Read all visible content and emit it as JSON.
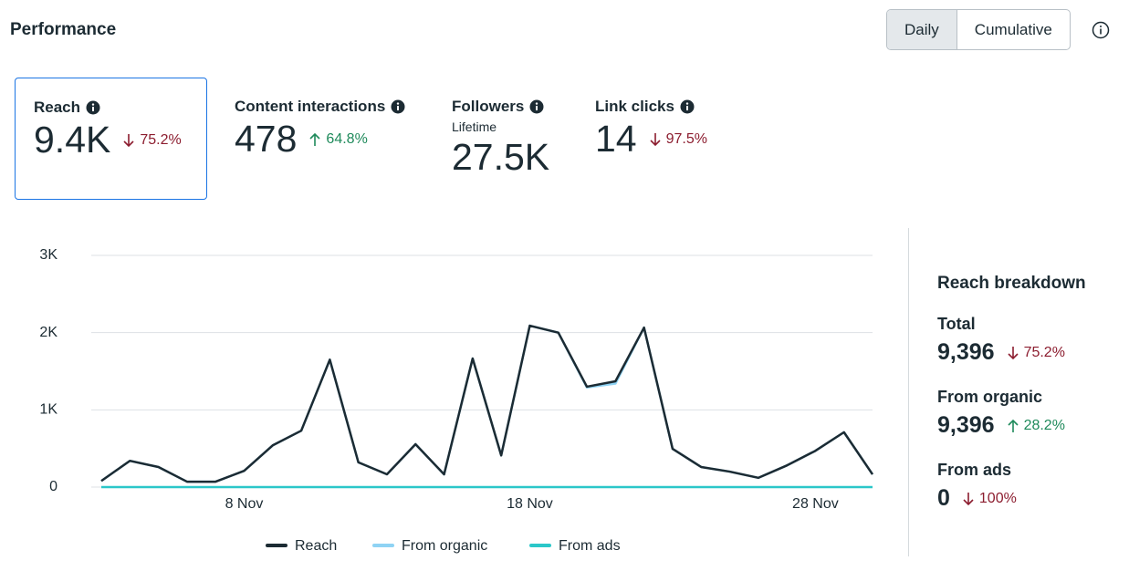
{
  "header": {
    "title": "Performance",
    "toggle": [
      "Daily",
      "Cumulative"
    ]
  },
  "metrics": [
    {
      "label": "Reach",
      "value": "9.4K",
      "change": "75.2%"
    },
    {
      "label": "Content interactions",
      "value": "478",
      "change": "64.8%"
    },
    {
      "label": "Followers",
      "sublabel": "Lifetime",
      "value": "27.5K"
    },
    {
      "label": "Link clicks",
      "value": "14",
      "change": "97.5%"
    }
  ],
  "chart_data": {
    "type": "line",
    "categories": [
      null,
      null,
      null,
      null,
      null,
      "8 Nov",
      null,
      null,
      null,
      null,
      null,
      null,
      null,
      null,
      null,
      "18 Nov",
      null,
      null,
      null,
      null,
      null,
      null,
      null,
      null,
      null,
      "28 Nov",
      null,
      null
    ],
    "series": [
      {
        "name": "Reach",
        "color": "#1c2b33",
        "values": [
          80,
          340,
          260,
          70,
          70,
          210,
          540,
          730,
          1650,
          320,
          165,
          555,
          165,
          1665,
          410,
          2090,
          2000,
          1300,
          1370,
          2065,
          495,
          260,
          200,
          120,
          280,
          470,
          710,
          165
        ]
      },
      {
        "name": "From organic",
        "color": "#8fd3f4",
        "values": [
          80,
          340,
          260,
          70,
          70,
          210,
          540,
          730,
          1650,
          320,
          165,
          555,
          165,
          1665,
          410,
          2090,
          2000,
          1290,
          1340,
          2065,
          495,
          260,
          200,
          120,
          280,
          470,
          710,
          165
        ]
      },
      {
        "name": "From ads",
        "color": "#2bc7c9",
        "values": [
          0,
          0,
          0,
          0,
          0,
          0,
          0,
          0,
          0,
          0,
          0,
          0,
          0,
          0,
          0,
          0,
          0,
          0,
          0,
          0,
          0,
          0,
          0,
          0,
          0,
          0,
          0,
          0
        ]
      }
    ],
    "ylim": [
      0,
      3000
    ],
    "yticks": [
      0,
      {
        "value": 1000,
        "label": "1K"
      },
      {
        "value": 2000,
        "label": "2K"
      },
      {
        "value": 3000,
        "label": "3K"
      }
    ],
    "grid": true
  },
  "breakdown": {
    "title": "Reach breakdown",
    "items": [
      {
        "label": "Total",
        "value": "9,396",
        "change": "75.2%"
      },
      {
        "label": "From organic",
        "value": "9,396",
        "change": "28.2%"
      },
      {
        "label": "From ads",
        "value": "0",
        "change": "100%"
      }
    ]
  }
}
